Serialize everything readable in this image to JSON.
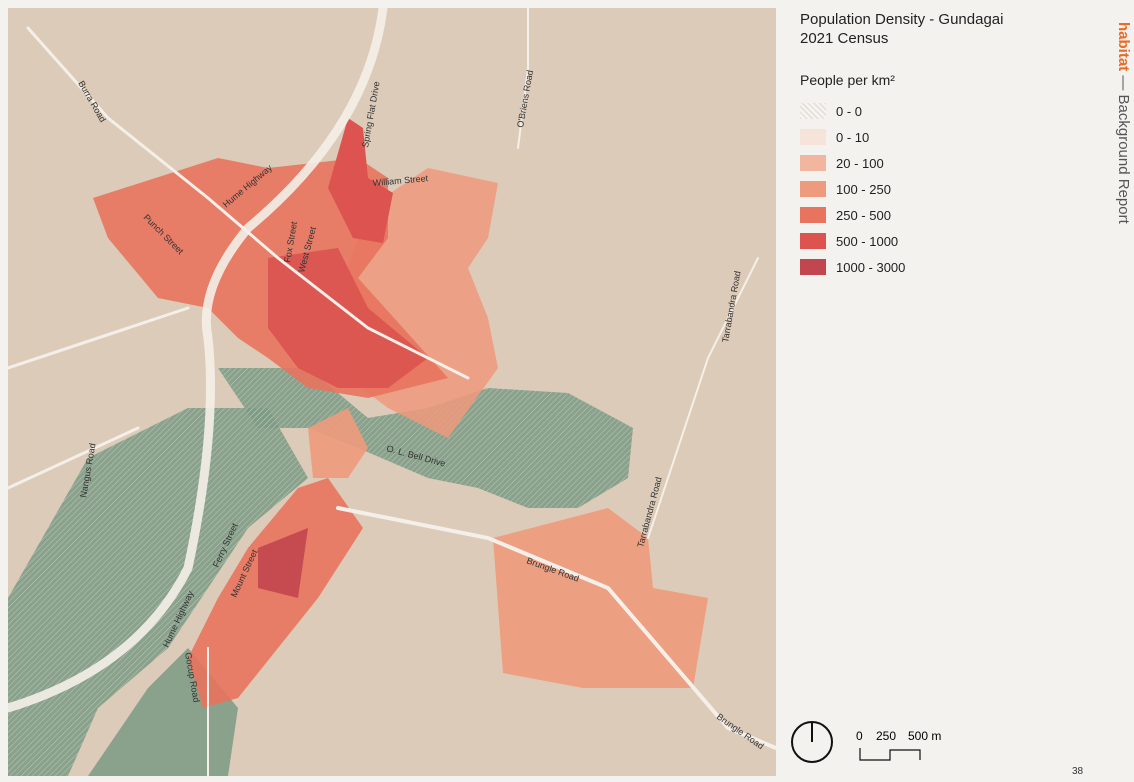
{
  "map": {
    "title": "Population Density - Gundagai",
    "subtitle": "2021 Census",
    "legend_title": "People per km²",
    "legend": [
      {
        "label": "0 - 0",
        "color": "#e6e2dc",
        "hatched": true
      },
      {
        "label": "0 - 10",
        "color": "#f6e4db"
      },
      {
        "label": "20 - 100",
        "color": "#f2b6a0"
      },
      {
        "label": "100 - 250",
        "color": "#ee9a7c"
      },
      {
        "label": "250 - 500",
        "color": "#e8735e"
      },
      {
        "label": "500 - 1000",
        "color": "#dc5350"
      },
      {
        "label": "1000 - 3000",
        "color": "#c1464f"
      }
    ],
    "streets": [
      "Burra Road",
      "Spring Flat Drive",
      "O'Briens Road",
      "Hume Highway",
      "William Street",
      "Punch Street",
      "Fox Street",
      "West Street",
      "Tarrabandra Road",
      "O. L. Bell Drive",
      "Nangus Road",
      "Tarrabandra Road",
      "Ferry Street",
      "Mount Street",
      "Brungle Road",
      "Hume Highway",
      "Gocup Road",
      "Brungle Road"
    ],
    "scale": {
      "labels": [
        "0",
        "250",
        "500 m"
      ]
    }
  },
  "sidebar": {
    "brand": "habitat",
    "text": "— Background Report"
  },
  "page_number": "38"
}
